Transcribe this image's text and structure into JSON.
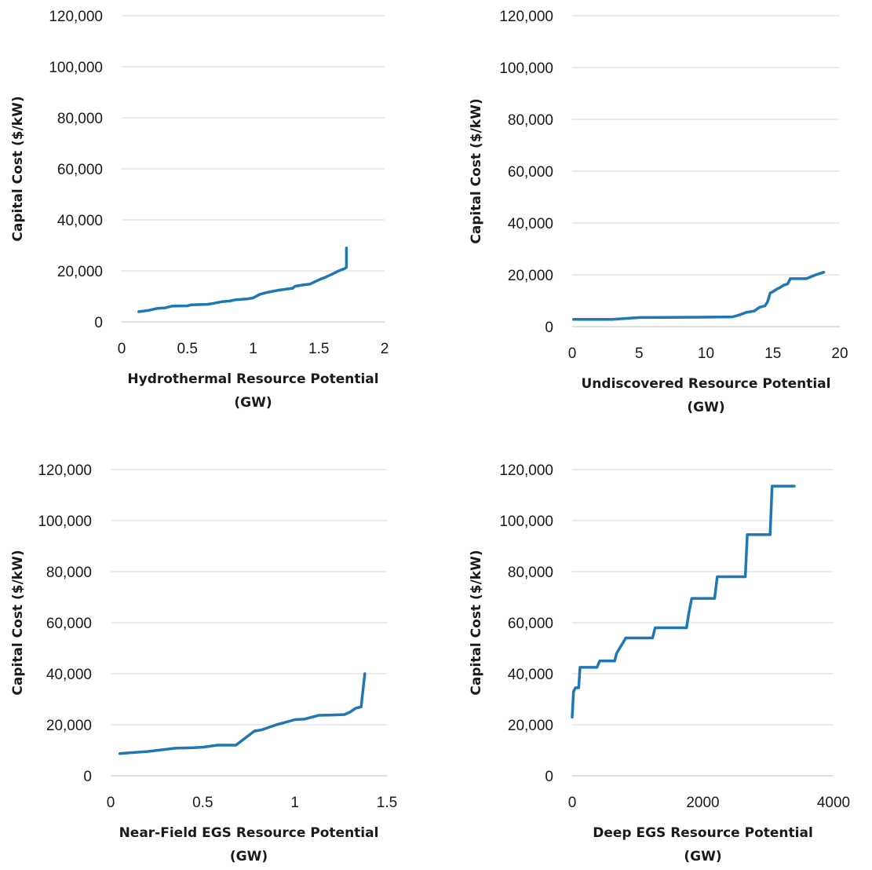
{
  "colors": {
    "series": "#1f77b4",
    "grid": "#d9d9d9",
    "text": "#1a1a1a"
  },
  "chart_data": [
    {
      "type": "line",
      "title": "",
      "xlabel": "Hydrothermal Resource Potential (GW)",
      "xlabel_lines": [
        "Hydrothermal Resource Potential",
        "(GW)"
      ],
      "ylabel": "Capital Cost ($/kW)",
      "xlim": [
        0,
        2
      ],
      "ylim": [
        0,
        120000
      ],
      "xticks": [
        0,
        0.5,
        1,
        1.5,
        2
      ],
      "xtick_labels": [
        "0",
        "0.5",
        "1",
        "1.5",
        "2"
      ],
      "yticks": [
        0,
        20000,
        40000,
        60000,
        80000,
        100000,
        120000
      ],
      "ytick_labels": [
        "0",
        "20,000",
        "40,000",
        "60,000",
        "80,000",
        "100,000",
        "120,000"
      ],
      "grid": true,
      "series": [
        {
          "x": [
            0.13,
            0.2,
            0.27,
            0.33,
            0.38,
            0.5,
            0.53,
            0.65,
            0.7,
            0.76,
            0.82,
            0.87,
            0.95,
            1.0,
            1.05,
            1.1,
            1.15,
            1.2,
            1.3,
            1.32,
            1.38,
            1.43,
            1.5,
            1.55,
            1.6,
            1.65,
            1.7,
            1.71,
            1.71
          ],
          "y": [
            4000,
            4500,
            5300,
            5500,
            6200,
            6300,
            6700,
            6900,
            7300,
            7900,
            8200,
            8700,
            9000,
            9400,
            10800,
            11500,
            12000,
            12500,
            13200,
            14000,
            14500,
            14800,
            16500,
            17500,
            18700,
            20000,
            21000,
            21500,
            29000
          ]
        }
      ]
    },
    {
      "type": "line",
      "title": "",
      "xlabel": "Undiscovered Resource Potential (GW)",
      "xlabel_lines": [
        "Undiscovered Resource Potential",
        "(GW)"
      ],
      "ylabel": "Capital Cost ($/kW)",
      "xlim": [
        0,
        20
      ],
      "ylim": [
        0,
        120000
      ],
      "xticks": [
        0,
        5,
        10,
        15,
        20
      ],
      "xtick_labels": [
        "0",
        "5",
        "10",
        "15",
        "20"
      ],
      "yticks": [
        0,
        20000,
        40000,
        60000,
        80000,
        100000,
        120000
      ],
      "ytick_labels": [
        "0",
        "20,000",
        "40,000",
        "60,000",
        "80,000",
        "100,000",
        "120,000"
      ],
      "grid": true,
      "series": [
        {
          "x": [
            0.1,
            3,
            5,
            8,
            11,
            12,
            12.5,
            13,
            13.6,
            14,
            14.4,
            14.6,
            14.8,
            15,
            15.3,
            15.5,
            15.8,
            16.1,
            16.3,
            17.5,
            18.2,
            18.8
          ],
          "y": [
            2800,
            2800,
            3500,
            3600,
            3700,
            3800,
            4500,
            5500,
            6000,
            7500,
            8000,
            9500,
            13000,
            13500,
            14500,
            15000,
            16000,
            16500,
            18500,
            18500,
            20000,
            21000
          ]
        }
      ]
    },
    {
      "type": "line",
      "title": "",
      "xlabel": "Near-Field EGS Resource Potential (GW)",
      "xlabel_lines": [
        "Near-Field EGS Resource Potential",
        "(GW)"
      ],
      "ylabel": "Capital Cost ($/kW)",
      "xlim": [
        0,
        1.5
      ],
      "ylim": [
        0,
        120000
      ],
      "xticks": [
        0,
        0.5,
        1,
        1.5
      ],
      "xtick_labels": [
        "0",
        "0.5",
        "1",
        "1.5"
      ],
      "yticks": [
        0,
        20000,
        40000,
        60000,
        80000,
        100000,
        120000
      ],
      "ytick_labels": [
        "0",
        "20,000",
        "40,000",
        "60,000",
        "80,000",
        "100,000",
        "120,000"
      ],
      "grid": true,
      "series": [
        {
          "x": [
            0.05,
            0.1,
            0.2,
            0.28,
            0.35,
            0.45,
            0.5,
            0.58,
            0.68,
            0.78,
            0.82,
            0.9,
            0.95,
            1.0,
            1.05,
            1.13,
            1.2,
            1.27,
            1.3,
            1.33,
            1.36,
            1.38
          ],
          "y": [
            8700,
            9000,
            9500,
            10200,
            10800,
            11000,
            11200,
            12000,
            12000,
            17500,
            18000,
            20000,
            21000,
            22000,
            22200,
            23700,
            23800,
            24000,
            25000,
            26500,
            27000,
            40000
          ]
        }
      ]
    },
    {
      "type": "line",
      "title": "",
      "xlabel": "Deep EGS Resource Potential (GW)",
      "xlabel_lines": [
        "Deep EGS Resource Potential",
        "(GW)"
      ],
      "ylabel": "Capital Cost ($/kW)",
      "xlim": [
        0,
        4000
      ],
      "ylim": [
        0,
        120000
      ],
      "xticks": [
        0,
        2000,
        4000
      ],
      "xtick_labels": [
        "0",
        "2000",
        "4000"
      ],
      "yticks": [
        0,
        20000,
        40000,
        60000,
        80000,
        100000,
        120000
      ],
      "ytick_labels": [
        "0",
        "20,000",
        "40,000",
        "60,000",
        "80,000",
        "100,000",
        "120,000"
      ],
      "grid": true,
      "series": [
        {
          "x": [
            0,
            20,
            50,
            100,
            120,
            380,
            420,
            650,
            680,
            820,
            1230,
            1270,
            1750,
            1780,
            1830,
            2180,
            2220,
            2650,
            2680,
            3030,
            3060,
            3400
          ],
          "y": [
            23000,
            33000,
            34500,
            34500,
            42500,
            42500,
            45000,
            45000,
            48000,
            54000,
            54000,
            58000,
            58000,
            63000,
            69500,
            69500,
            78000,
            78000,
            94500,
            94500,
            113500,
            113500
          ]
        }
      ]
    }
  ]
}
